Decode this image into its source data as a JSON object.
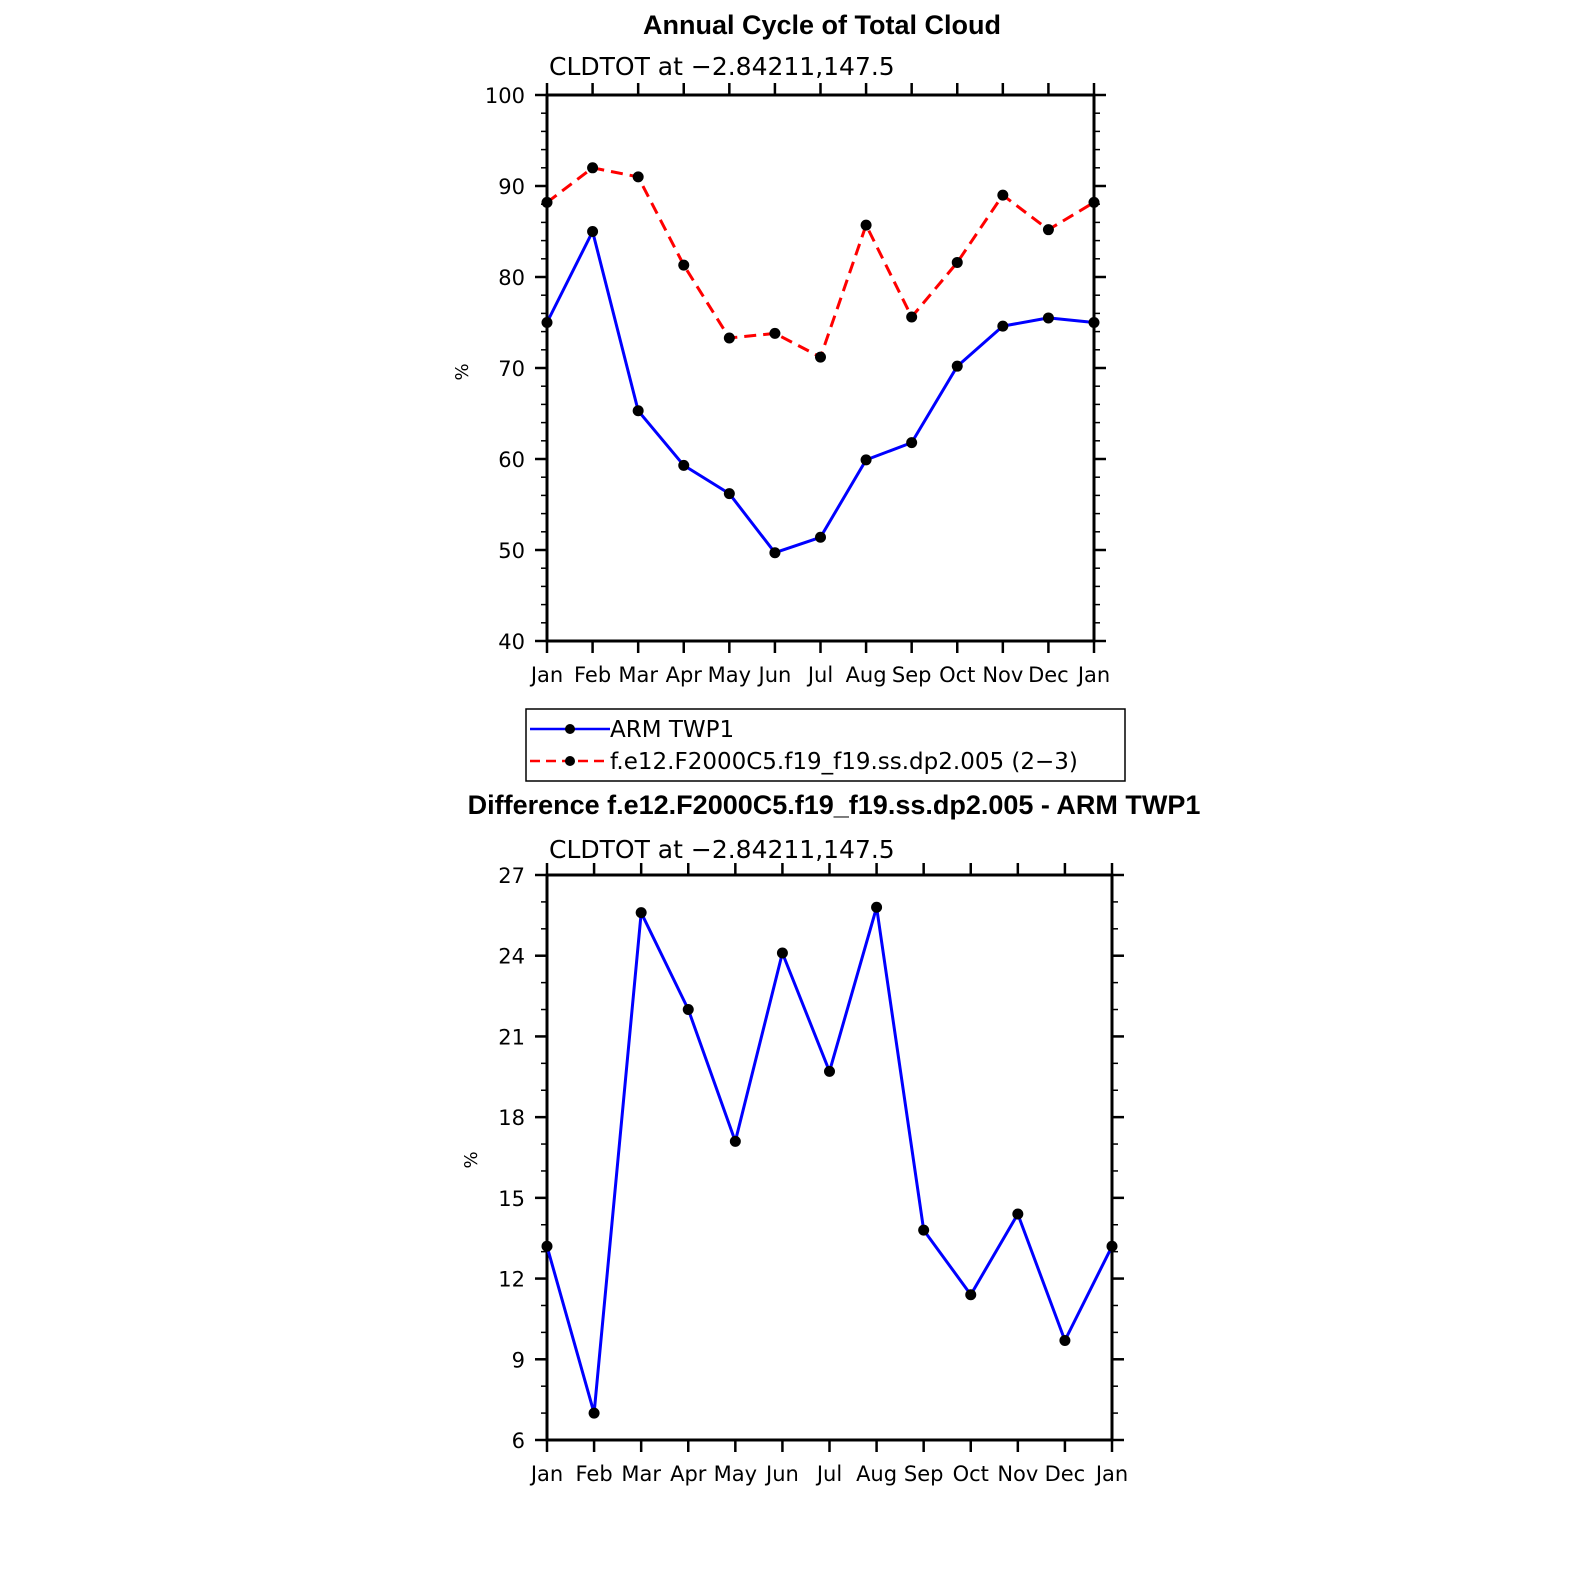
{
  "colors": {
    "series1": "#0000ff",
    "series2": "#ff0000",
    "markers": "#000000",
    "axes": "#000000"
  },
  "chart_data": [
    {
      "type": "line",
      "title": "Annual Cycle of Total Cloud",
      "subtitle": "CLDTOT at −2.84211,147.5",
      "xlabel": "",
      "ylabel": "%",
      "categories": [
        "Jan",
        "Feb",
        "Mar",
        "Apr",
        "May",
        "Jun",
        "Jul",
        "Aug",
        "Sep",
        "Oct",
        "Nov",
        "Dec",
        "Jan"
      ],
      "ylim": [
        40,
        100
      ],
      "yticks": [
        "40",
        "50",
        "60",
        "70",
        "80",
        "90",
        "100"
      ],
      "series": [
        {
          "name": "ARM TWP1",
          "style": "solid",
          "color": "#0000ff",
          "values": [
            75.0,
            85.0,
            65.3,
            59.3,
            56.2,
            49.7,
            51.4,
            59.9,
            61.8,
            70.2,
            74.6,
            75.5,
            75.0
          ]
        },
        {
          "name": "f.e12.F2000C5.f19_f19.ss.dp2.005 (2−3)",
          "style": "dashed",
          "color": "#ff0000",
          "values": [
            88.2,
            92.0,
            91.0,
            81.3,
            73.3,
            73.8,
            71.2,
            85.7,
            75.6,
            81.6,
            89.0,
            85.2,
            88.2
          ]
        }
      ],
      "legend": "bottom"
    },
    {
      "type": "line",
      "title": "Difference f.e12.F2000C5.f19_f19.ss.dp2.005 - ARM TWP1",
      "subtitle": "CLDTOT at −2.84211,147.5",
      "xlabel": "",
      "ylabel": "%",
      "categories": [
        "Jan",
        "Feb",
        "Mar",
        "Apr",
        "May",
        "Jun",
        "Jul",
        "Aug",
        "Sep",
        "Oct",
        "Nov",
        "Dec",
        "Jan"
      ],
      "ylim": [
        6,
        27
      ],
      "yticks": [
        "6",
        "9",
        "12",
        "15",
        "18",
        "21",
        "24",
        "27"
      ],
      "series": [
        {
          "name": "Difference",
          "style": "solid",
          "color": "#0000ff",
          "values": [
            13.2,
            7.0,
            25.6,
            22.0,
            17.1,
            24.1,
            19.7,
            25.8,
            13.8,
            11.4,
            14.4,
            9.7,
            13.2
          ]
        }
      ]
    }
  ]
}
